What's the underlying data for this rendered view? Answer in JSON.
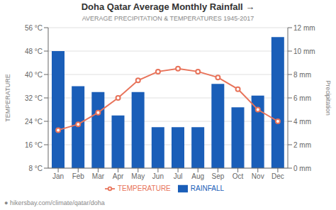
{
  "chart_data": {
    "type": "bar",
    "title": "Doha Qatar Average Monthly Rainfall  →",
    "subtitle": "AVERAGE PRECIPITATION & TEMPERATURES 1945-2017",
    "ylabel": "TEMPERATURE",
    "y2label": "Precipitation",
    "categories": [
      "Jan",
      "Feb",
      "Mar",
      "Apr",
      "May",
      "Jun",
      "Jul",
      "Aug",
      "Sep",
      "Oct",
      "Nov",
      "Dec"
    ],
    "series": [
      {
        "name": "TEMPERATURE",
        "type": "line",
        "color": "#e8735a",
        "marker": "o",
        "values": [
          21,
          23,
          27,
          32,
          38,
          41,
          42,
          41,
          39,
          35,
          28,
          24
        ]
      },
      {
        "name": "RAINFALL",
        "type": "bar",
        "color": "#1a5eb8",
        "axis": "y2",
        "values": [
          10.0,
          7.0,
          6.5,
          4.5,
          6.5,
          3.5,
          3.5,
          3.5,
          7.2,
          5.2,
          6.2,
          11.2
        ]
      }
    ],
    "ylim": [
      8,
      56
    ],
    "yticks": [
      {
        "value": 8,
        "label": "8 °C"
      },
      {
        "value": 16,
        "label": "16 °C"
      },
      {
        "value": 24,
        "label": "24 °C"
      },
      {
        "value": 32,
        "label": "32 °C"
      },
      {
        "value": 40,
        "label": "40 °C"
      },
      {
        "value": 48,
        "label": "48 °C"
      },
      {
        "value": 56,
        "label": "56 °C"
      }
    ],
    "y2lim": [
      0,
      12
    ],
    "y2ticks": [
      {
        "value": 0,
        "label": "0 mm"
      },
      {
        "value": 2,
        "label": "2 mm"
      },
      {
        "value": 4,
        "label": "4 mm"
      },
      {
        "value": 6,
        "label": "6 mm"
      },
      {
        "value": 8,
        "label": "8 mm"
      },
      {
        "value": 10,
        "label": "10 mm"
      },
      {
        "value": 12,
        "label": "12 mm"
      }
    ],
    "grid": true,
    "legend": "bottom",
    "annotations": [
      "● hikersbay.com/climate/qatar/doha"
    ]
  }
}
